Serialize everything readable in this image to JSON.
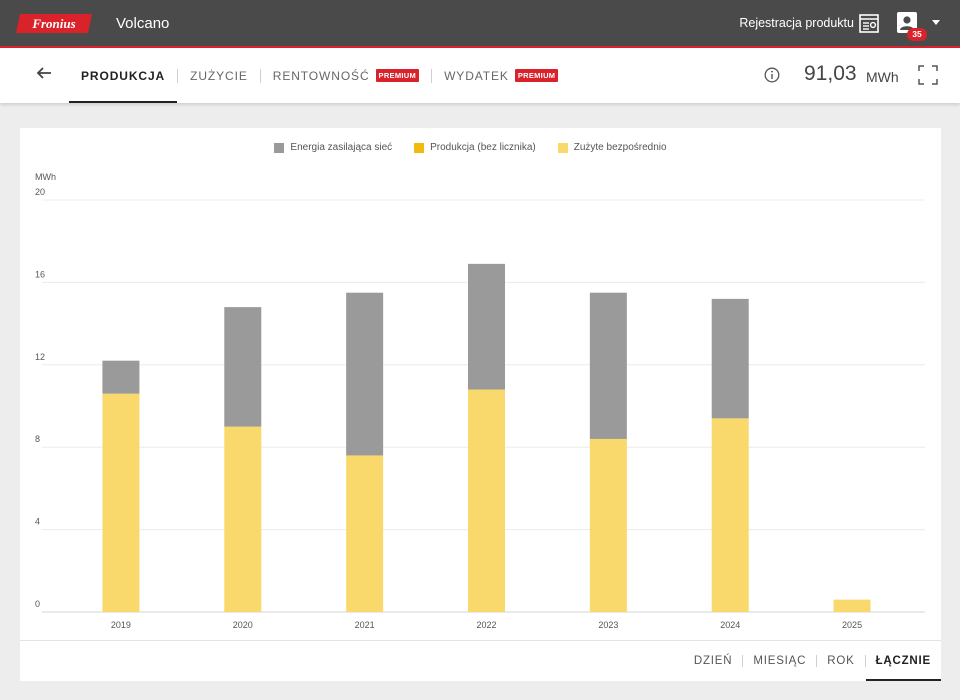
{
  "header": {
    "brand": "Fronius",
    "site_name": "Volcano",
    "register_label": "Rejestracja produktu",
    "notification_count": "35"
  },
  "nav": {
    "tabs": [
      {
        "label": "PRODUKCJA",
        "active": true
      },
      {
        "label": "ZUŻYCIE",
        "active": false
      },
      {
        "label": "RENTOWNOŚĆ",
        "active": false,
        "badge": "PREMIUM"
      },
      {
        "label": "WYDATEK",
        "active": false,
        "badge": "PREMIUM"
      }
    ],
    "total_value": "91,03",
    "total_unit": "MWh"
  },
  "colors": {
    "accent_red": "#d9222a",
    "grid_feed": "#9a9a9a",
    "production_no_meter": "#f0bb0c",
    "direct_consumption": "#f9d96b"
  },
  "chart_data": {
    "type": "bar",
    "stacked": true,
    "title": "",
    "ylabel": "MWh",
    "xlabel": "",
    "ylim": [
      0,
      20
    ],
    "yticks": [
      0,
      4,
      8,
      12,
      16,
      20
    ],
    "categories": [
      "2019",
      "2020",
      "2021",
      "2022",
      "2023",
      "2024",
      "2025"
    ],
    "legend": [
      "Energia zasilająca sieć",
      "Produkcja (bez licznika)",
      "Zużyte bezpośrednio"
    ],
    "series": [
      {
        "name": "Zużyte bezpośrednio",
        "color": "#f9d96b",
        "values": [
          10.6,
          9.0,
          7.6,
          10.8,
          8.4,
          9.4,
          0.6
        ]
      },
      {
        "name": "Produkcja (bez licznika)",
        "color": "#f0bb0c",
        "values": [
          0,
          0,
          0,
          0,
          0,
          0,
          0
        ]
      },
      {
        "name": "Energia zasilająca sieć",
        "color": "#9a9a9a",
        "values": [
          1.6,
          5.8,
          7.9,
          6.1,
          7.1,
          5.8,
          0
        ]
      }
    ]
  },
  "range": {
    "buttons": [
      {
        "label": "DZIEŃ",
        "active": false
      },
      {
        "label": "MIESIĄC",
        "active": false
      },
      {
        "label": "ROK",
        "active": false
      },
      {
        "label": "ŁĄCZNIE",
        "active": true
      }
    ]
  }
}
